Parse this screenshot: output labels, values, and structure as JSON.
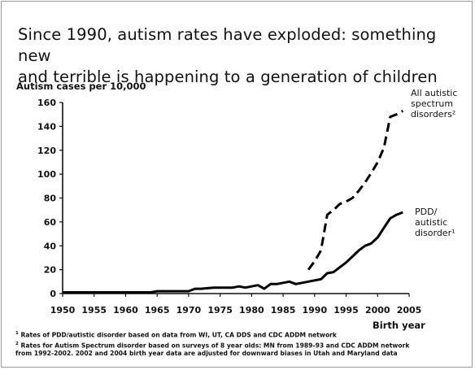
{
  "chart_data": {
    "type": "line",
    "title_lines": [
      "Since 1990, autism rates have exploded: something new",
      "and terrible is happening to a generation of children"
    ],
    "ylabel": "Autism cases per 10,000",
    "xlabel": "Birth year",
    "xlim": [
      1950,
      2005
    ],
    "ylim": [
      0,
      160
    ],
    "xticks": [
      "1950",
      "1955",
      "1960",
      "1965",
      "1970",
      "1975",
      "1980",
      "1985",
      "1990",
      "1995",
      "2000",
      "2005"
    ],
    "yticks": [
      "0",
      "20",
      "40",
      "60",
      "80",
      "100",
      "120",
      "140",
      "160"
    ],
    "grid": false,
    "series": [
      {
        "name": "All autistic spectrum disorders",
        "label_lines": [
          "All autistic",
          "spectrum",
          "disorders²"
        ],
        "style": "dashed",
        "x": [
          1989,
          1990,
          1991,
          1992,
          1993,
          1994,
          1995,
          1996,
          1997,
          1998,
          1999,
          2000,
          2001,
          2002,
          2003,
          2004
        ],
        "y": [
          20,
          27,
          36,
          66,
          70,
          75,
          77,
          80,
          86,
          93,
          101,
          110,
          122,
          148,
          150,
          153
        ]
      },
      {
        "name": "PDD/autistic disorder",
        "label_lines": [
          "PDD/",
          "autistic",
          "disorder¹"
        ],
        "style": "solid",
        "x": [
          1950,
          1955,
          1960,
          1964,
          1965,
          1969,
          1970,
          1971,
          1972,
          1973,
          1974,
          1975,
          1976,
          1977,
          1978,
          1979,
          1980,
          1981,
          1982,
          1983,
          1984,
          1985,
          1986,
          1987,
          1988,
          1989,
          1990,
          1991,
          1992,
          1993,
          1994,
          1995,
          1996,
          1997,
          1998,
          1999,
          2000,
          2001,
          2002,
          2003,
          2004
        ],
        "y": [
          1,
          1,
          1,
          1,
          2,
          2,
          2,
          4,
          4,
          4.5,
          5,
          5,
          5,
          5,
          6,
          5,
          6,
          7,
          4,
          8,
          8,
          9,
          10,
          8,
          9,
          10,
          11,
          12,
          17,
          18,
          22,
          26,
          31,
          36,
          40,
          42,
          47,
          55,
          63,
          66,
          68
        ]
      }
    ]
  },
  "footnotes": [
    {
      "mark": "1",
      "text": "Rates of PDD/autistic disorder based on data from WI, UT, CA DDS and CDC ADDM network"
    },
    {
      "mark": "2",
      "text": "Rates for Autism Spectrum disorder based on surveys of 8 year olds: MN from 1989-93 and CDC ADDM network"
    },
    {
      "mark": "",
      "text": "from 1992-2002. 2002 and 2004 birth year data are adjusted for downward biases in Utah and Maryland data"
    }
  ]
}
